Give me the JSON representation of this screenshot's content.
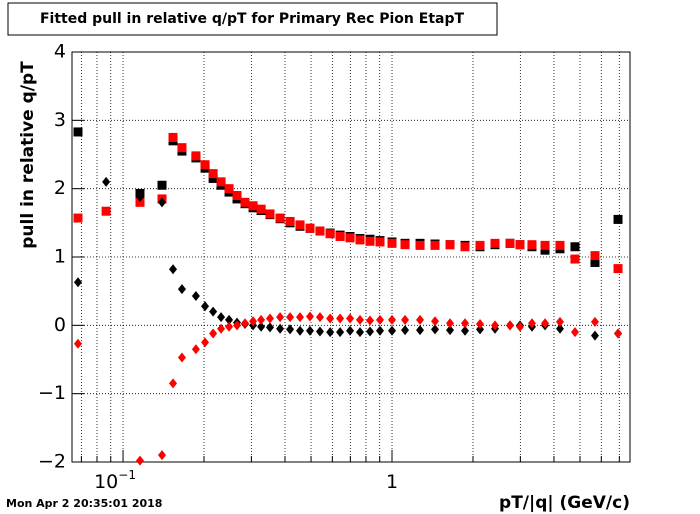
{
  "chart_data": {
    "type": "scatter",
    "title": "Fitted pull in relative q/pT for Primary Rec Pion EtapT",
    "xlabel": "pT/|q| (GeV/c)",
    "ylabel": "pull in relative q/pT",
    "timestamp": "Mon Apr  2 20:35:01 2018",
    "xscale": "log",
    "grid": true,
    "xlim": [
      0.0646,
      7.67
    ],
    "ylim": [
      -2,
      4
    ],
    "xticks": [
      {
        "value": 0.1,
        "label": "10",
        "exponent": "−1"
      },
      {
        "value": 1,
        "label": "1"
      }
    ],
    "xminorticks": [
      0.07,
      0.08,
      0.09,
      0.2,
      0.3,
      0.4,
      0.5,
      0.6,
      0.7,
      0.8,
      0.9,
      2,
      3,
      4,
      5,
      6,
      7
    ],
    "yticks": [
      {
        "value": -2,
        "label": "−2"
      },
      {
        "value": -1,
        "label": "−1"
      },
      0,
      1,
      2,
      3,
      4
    ],
    "x": [
      0.068,
      0.0865,
      0.1156,
      0.1396,
      0.1534,
      0.1656,
      0.1866,
      0.2018,
      0.2162,
      0.2314,
      0.2478,
      0.2653,
      0.2841,
      0.3044,
      0.326,
      0.3518,
      0.3836,
      0.4178,
      0.455,
      0.4955,
      0.5397,
      0.5888,
      0.6412,
      0.6982,
      0.7603,
      0.8283,
      0.9023,
      1.0,
      1.118,
      1.271,
      1.445,
      1.643,
      1.868,
      2.124,
      2.415,
      2.746,
      2.991,
      3.314,
      3.706,
      4.212,
      4.789,
      5.684,
      6.923
    ],
    "series": [
      {
        "marker": "square",
        "color": "#000000",
        "values": [
          2.83,
          null,
          1.93,
          2.05,
          2.7,
          2.55,
          2.45,
          2.3,
          2.15,
          2.05,
          1.95,
          1.85,
          1.78,
          1.72,
          1.68,
          1.62,
          1.56,
          1.5,
          1.45,
          1.42,
          1.38,
          1.35,
          1.32,
          1.3,
          1.27,
          1.26,
          1.24,
          1.22,
          1.2,
          1.2,
          1.19,
          1.18,
          1.17,
          1.15,
          1.18,
          1.2,
          1.18,
          1.15,
          1.1,
          1.12,
          1.15,
          0.92,
          1.55
        ]
      },
      {
        "marker": "square",
        "color": "#ff0000",
        "values": [
          1.57,
          1.67,
          1.8,
          1.85,
          2.75,
          2.6,
          2.48,
          2.35,
          2.22,
          2.1,
          2.0,
          1.9,
          1.8,
          1.75,
          1.7,
          1.63,
          1.57,
          1.52,
          1.47,
          1.42,
          1.38,
          1.34,
          1.3,
          1.28,
          1.25,
          1.23,
          1.22,
          1.2,
          1.18,
          1.17,
          1.17,
          1.18,
          1.15,
          1.17,
          1.2,
          1.2,
          1.18,
          1.18,
          1.17,
          1.17,
          0.97,
          1.02,
          0.83
        ]
      },
      {
        "marker": "diamond",
        "color": "#000000",
        "values": [
          0.63,
          2.1,
          1.88,
          1.8,
          0.82,
          0.53,
          0.43,
          0.28,
          0.2,
          0.12,
          0.08,
          0.04,
          0.02,
          0.0,
          -0.02,
          -0.03,
          -0.05,
          -0.06,
          -0.08,
          -0.08,
          -0.09,
          -0.1,
          -0.1,
          -0.08,
          -0.1,
          -0.09,
          -0.08,
          -0.08,
          -0.07,
          -0.07,
          -0.06,
          -0.07,
          -0.08,
          -0.06,
          -0.05,
          0.0,
          0.0,
          -0.02,
          0.0,
          -0.05,
          null,
          -0.15,
          -0.12
        ]
      },
      {
        "marker": "diamond",
        "color": "#ff0000",
        "values": [
          -0.27,
          null,
          -1.98,
          -1.9,
          -0.85,
          -0.47,
          -0.35,
          -0.25,
          -0.12,
          -0.05,
          -0.02,
          0.0,
          0.03,
          0.06,
          0.08,
          0.1,
          0.12,
          0.12,
          0.12,
          0.13,
          0.12,
          0.1,
          0.1,
          0.1,
          0.08,
          0.07,
          0.08,
          0.08,
          0.08,
          0.08,
          0.06,
          0.03,
          0.03,
          0.02,
          0.0,
          0.0,
          -0.02,
          0.03,
          0.03,
          0.05,
          -0.1,
          0.05,
          -0.12
        ]
      }
    ]
  }
}
